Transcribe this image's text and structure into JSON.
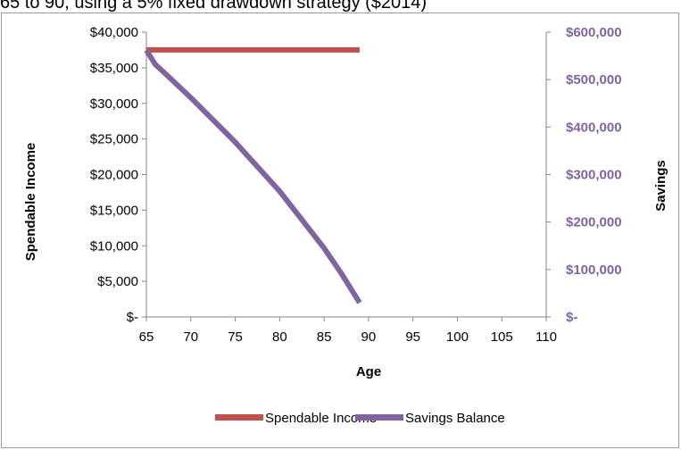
{
  "chart_data": {
    "type": "line",
    "title": "65 to 90, using a 5% fixed drawdown strategy ($2014)",
    "xlabel": "Age",
    "ylabel": "Spendable Income",
    "y2label": "Savings",
    "xlim": [
      65,
      110
    ],
    "ylim": [
      0,
      40000
    ],
    "y2lim": [
      0,
      600000
    ],
    "x_ticks": [
      "65",
      "70",
      "75",
      "80",
      "85",
      "90",
      "95",
      "100",
      "105",
      "110"
    ],
    "y_ticks": [
      "$-",
      "$5,000",
      "$10,000",
      "$15,000",
      "$20,000",
      "$25,000",
      "$30,000",
      "$35,000",
      "$40,000"
    ],
    "y2_ticks": [
      "$-",
      "$100,000",
      "$200,000",
      "$300,000",
      "$400,000",
      "$500,000",
      "$600,000"
    ],
    "grid": false,
    "legend_position": "bottom",
    "series": [
      {
        "name": "Spendable Income",
        "axis": "left",
        "color": "#c0504d",
        "x": [
          65,
          89
        ],
        "y": [
          37500,
          37500
        ]
      },
      {
        "name": "Savings Balance",
        "axis": "right",
        "color": "#8064a2",
        "x": [
          65,
          66,
          67,
          70,
          75,
          80,
          85,
          87,
          89
        ],
        "y": [
          562000,
          532000,
          515000,
          462000,
          368000,
          265000,
          145000,
          90000,
          30000
        ]
      }
    ]
  }
}
